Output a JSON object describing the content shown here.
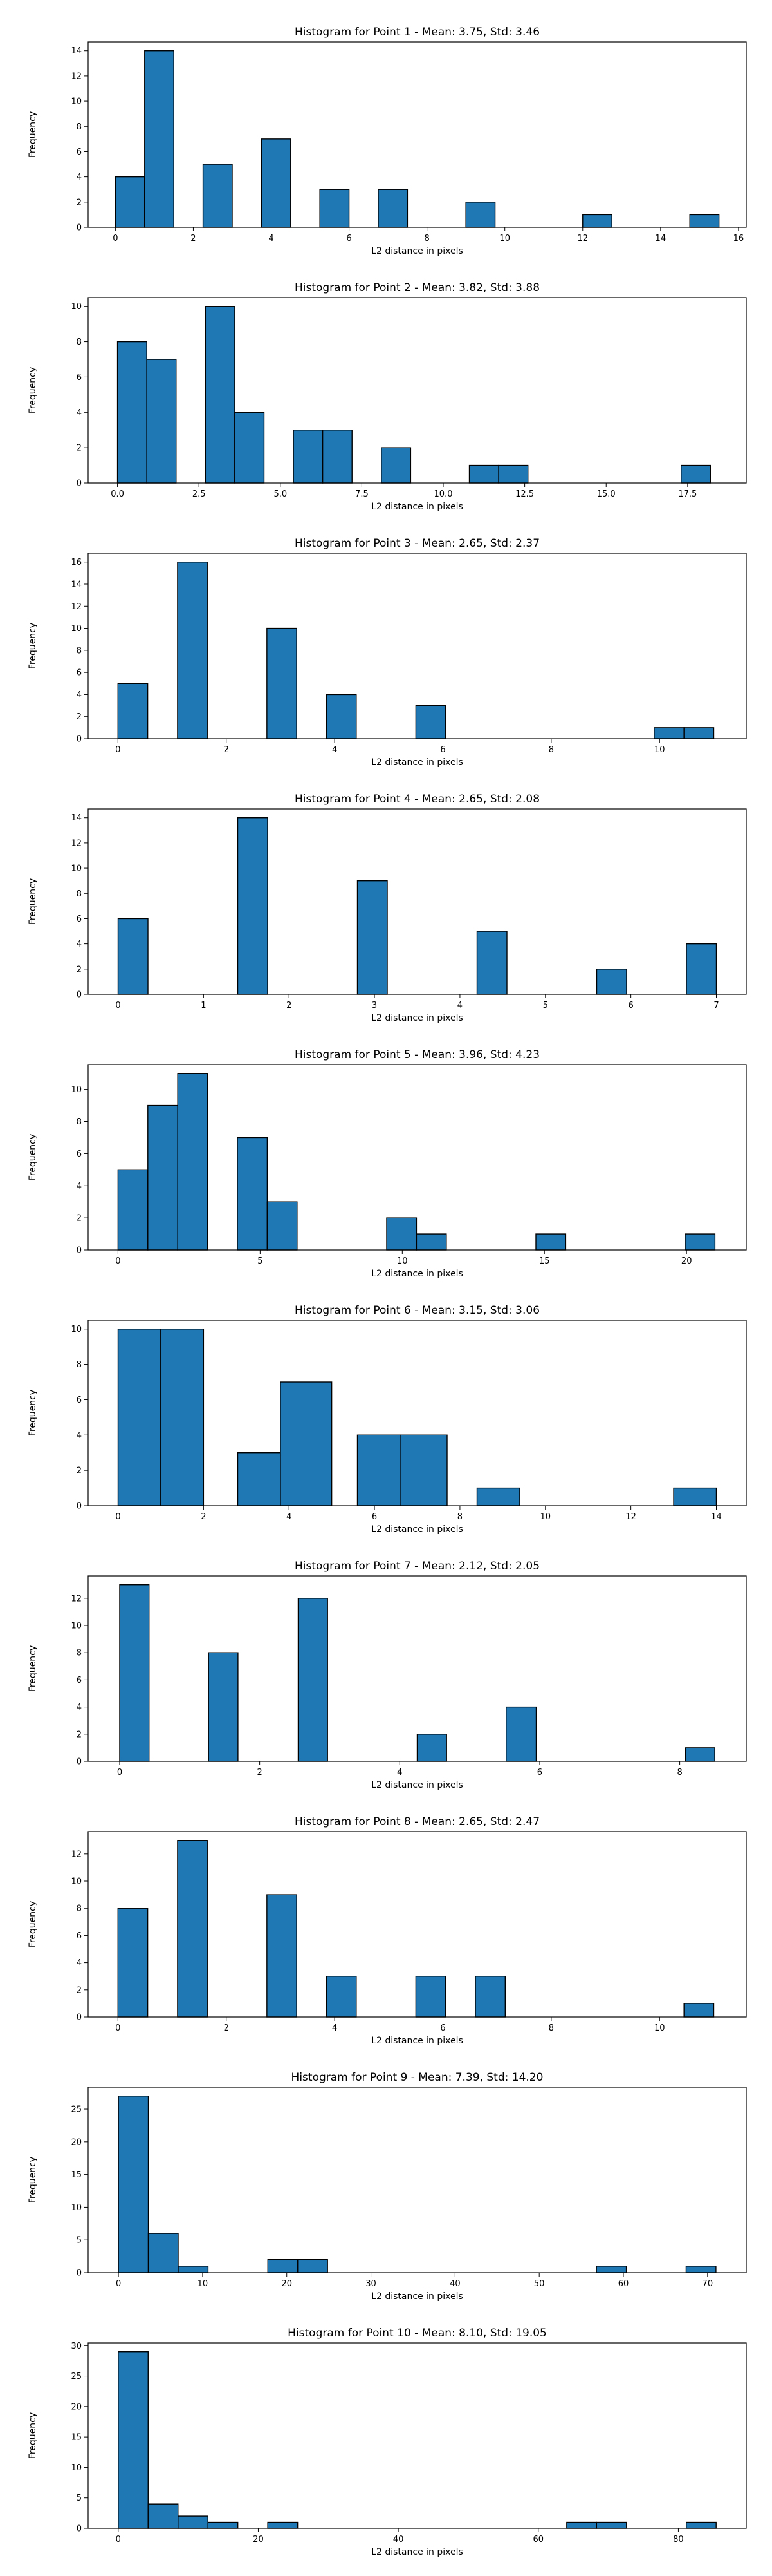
{
  "figure": {
    "bar_color": "#1f77b4",
    "edge_color": "#000000",
    "background": "#ffffff"
  },
  "chart_data": [
    {
      "type": "bar",
      "title": "Histogram for Point 1 - Mean: 3.75, Std: 3.46",
      "xlabel": "L2 distance in pixels",
      "ylabel": "Frequency",
      "xlim": [
        -0.7,
        16.2
      ],
      "ylim": [
        0,
        14.7
      ],
      "xticks": [
        0,
        2,
        4,
        6,
        8,
        10,
        12,
        14,
        16
      ],
      "xtick_labels": [
        "0",
        "2",
        "4",
        "6",
        "8",
        "10",
        "12",
        "14",
        "16"
      ],
      "yticks": [
        0,
        2,
        4,
        6,
        8,
        10,
        12,
        14
      ],
      "bins": [
        {
          "x0": 0.0,
          "x1": 0.75,
          "count": 4
        },
        {
          "x0": 0.75,
          "x1": 1.5,
          "count": 14
        },
        {
          "x0": 2.25,
          "x1": 3.0,
          "count": 5
        },
        {
          "x0": 3.75,
          "x1": 4.5,
          "count": 7
        },
        {
          "x0": 5.25,
          "x1": 6.0,
          "count": 3
        },
        {
          "x0": 6.75,
          "x1": 7.5,
          "count": 3
        },
        {
          "x0": 9.0,
          "x1": 9.75,
          "count": 2
        },
        {
          "x0": 12.0,
          "x1": 12.75,
          "count": 1
        },
        {
          "x0": 14.75,
          "x1": 15.5,
          "count": 1
        }
      ]
    },
    {
      "type": "bar",
      "title": "Histogram for Point 2 - Mean: 3.82, Std: 3.88",
      "xlabel": "L2 distance in pixels",
      "ylabel": "Frequency",
      "xlim": [
        -0.9,
        19.3
      ],
      "ylim": [
        0,
        10.5
      ],
      "xticks": [
        0,
        2.5,
        5,
        7.5,
        10,
        12.5,
        15,
        17.5
      ],
      "xtick_labels": [
        "0.0",
        "2.5",
        "5.0",
        "7.5",
        "10.0",
        "12.5",
        "15.0",
        "17.5"
      ],
      "yticks": [
        0,
        2,
        4,
        6,
        8,
        10
      ],
      "bins": [
        {
          "x0": 0.0,
          "x1": 0.9,
          "count": 8
        },
        {
          "x0": 0.9,
          "x1": 1.8,
          "count": 7
        },
        {
          "x0": 2.7,
          "x1": 3.6,
          "count": 10
        },
        {
          "x0": 3.6,
          "x1": 4.5,
          "count": 4
        },
        {
          "x0": 5.4,
          "x1": 6.3,
          "count": 3
        },
        {
          "x0": 6.3,
          "x1": 7.2,
          "count": 3
        },
        {
          "x0": 8.1,
          "x1": 9.0,
          "count": 2
        },
        {
          "x0": 10.8,
          "x1": 11.7,
          "count": 1
        },
        {
          "x0": 11.7,
          "x1": 12.6,
          "count": 1
        },
        {
          "x0": 17.3,
          "x1": 18.2,
          "count": 1
        }
      ]
    },
    {
      "type": "bar",
      "title": "Histogram for Point 3 - Mean: 2.65, Std: 2.37",
      "xlabel": "L2 distance in pixels",
      "ylabel": "Frequency",
      "xlim": [
        -0.55,
        11.6
      ],
      "ylim": [
        0,
        16.8
      ],
      "xticks": [
        2,
        4,
        6,
        8,
        10
      ],
      "xtick_labels": [
        "2",
        "4",
        "6",
        "8",
        "10"
      ],
      "xtick_zero_label": "0",
      "yticks": [
        0,
        2,
        4,
        6,
        8,
        10,
        12,
        14,
        16
      ],
      "bins": [
        {
          "x0": 0.0,
          "x1": 0.55,
          "count": 5
        },
        {
          "x0": 1.1,
          "x1": 1.65,
          "count": 16
        },
        {
          "x0": 2.75,
          "x1": 3.3,
          "count": 10
        },
        {
          "x0": 3.85,
          "x1": 4.4,
          "count": 4
        },
        {
          "x0": 5.5,
          "x1": 6.05,
          "count": 3
        },
        {
          "x0": 9.9,
          "x1": 10.45,
          "count": 1
        },
        {
          "x0": 10.45,
          "x1": 11.0,
          "count": 1
        }
      ]
    },
    {
      "type": "bar",
      "title": "Histogram for Point 4 - Mean: 2.65, Std: 2.08",
      "xlabel": "L2 distance in pixels",
      "ylabel": "Frequency",
      "xlim": [
        -0.35,
        7.35
      ],
      "ylim": [
        0,
        14.7
      ],
      "xticks": [
        0,
        1,
        2,
        3,
        4,
        5,
        6,
        7
      ],
      "xtick_labels": [
        "0",
        "1",
        "2",
        "3",
        "4",
        "5",
        "6",
        "7"
      ],
      "yticks": [
        0,
        2,
        4,
        6,
        8,
        10,
        12,
        14
      ],
      "bins": [
        {
          "x0": 0.0,
          "x1": 0.35,
          "count": 6
        },
        {
          "x0": 1.4,
          "x1": 1.75,
          "count": 14
        },
        {
          "x0": 2.8,
          "x1": 3.15,
          "count": 9
        },
        {
          "x0": 4.2,
          "x1": 4.55,
          "count": 5
        },
        {
          "x0": 5.6,
          "x1": 5.95,
          "count": 2
        },
        {
          "x0": 6.65,
          "x1": 7.0,
          "count": 4
        }
      ]
    },
    {
      "type": "bar",
      "title": "Histogram for Point 5 - Mean: 3.96, Std: 4.23",
      "xlabel": "L2 distance in pixels",
      "ylabel": "Frequency",
      "xlim": [
        -1.05,
        22.1
      ],
      "ylim": [
        0,
        11.55
      ],
      "xticks": [
        0,
        5,
        10,
        15,
        20
      ],
      "xtick_labels": [
        "0",
        "5",
        "10",
        "15",
        "20"
      ],
      "yticks": [
        0,
        2,
        4,
        6,
        8,
        10
      ],
      "bins": [
        {
          "x0": 0.0,
          "x1": 1.05,
          "count": 5
        },
        {
          "x0": 1.05,
          "x1": 2.1,
          "count": 9
        },
        {
          "x0": 2.1,
          "x1": 3.15,
          "count": 11
        },
        {
          "x0": 4.2,
          "x1": 5.25,
          "count": 7
        },
        {
          "x0": 5.25,
          "x1": 6.3,
          "count": 3
        },
        {
          "x0": 9.45,
          "x1": 10.5,
          "count": 2
        },
        {
          "x0": 10.5,
          "x1": 11.55,
          "count": 1
        },
        {
          "x0": 14.7,
          "x1": 15.75,
          "count": 1
        },
        {
          "x0": 19.95,
          "x1": 21.0,
          "count": 1
        }
      ]
    },
    {
      "type": "bar",
      "title": "Histogram for Point 6 - Mean: 3.15, Std: 3.06",
      "xlabel": "L2 distance in pixels",
      "ylabel": "Frequency",
      "xlim": [
        -0.7,
        14.7
      ],
      "ylim": [
        0,
        10.5
      ],
      "xticks": [
        0,
        2,
        4,
        6,
        8,
        10,
        12,
        14
      ],
      "xtick_labels": [
        "0",
        "2",
        "4",
        "6",
        "8",
        "10",
        "12",
        "14"
      ],
      "yticks": [
        0,
        2,
        4,
        6,
        8,
        10
      ],
      "bins": [
        {
          "x0": 0.0,
          "x1": 1.0,
          "count": 10
        },
        {
          "x0": 1.0,
          "x1": 2.0,
          "count": 10
        },
        {
          "x0": 2.8,
          "x1": 3.8,
          "count": 3
        },
        {
          "x0": 3.8,
          "x1": 5.0,
          "count": 7
        },
        {
          "x0": 5.6,
          "x1": 6.6,
          "count": 4
        },
        {
          "x0": 6.6,
          "x1": 7.7,
          "count": 4
        },
        {
          "x0": 8.4,
          "x1": 9.4,
          "count": 1
        },
        {
          "x0": 13.0,
          "x1": 14.0,
          "count": 1
        }
      ]
    },
    {
      "type": "bar",
      "title": "Histogram for Point 7 - Mean: 2.12, Std: 2.05",
      "xlabel": "L2 distance in pixels",
      "ylabel": "Frequency",
      "xlim": [
        -0.45,
        8.95
      ],
      "ylim": [
        0,
        13.65
      ],
      "xticks": [
        2,
        4,
        6,
        8
      ],
      "xtick_labels": [
        "2",
        "4",
        "6",
        "8"
      ],
      "xtick_zero_label": "0",
      "yticks": [
        0,
        2,
        4,
        6,
        8,
        10,
        12
      ],
      "bins": [
        {
          "x0": 0.0,
          "x1": 0.42,
          "count": 13
        },
        {
          "x0": 1.27,
          "x1": 1.69,
          "count": 8
        },
        {
          "x0": 2.55,
          "x1": 2.97,
          "count": 12
        },
        {
          "x0": 4.25,
          "x1": 4.67,
          "count": 2
        },
        {
          "x0": 5.52,
          "x1": 5.95,
          "count": 4
        },
        {
          "x0": 8.08,
          "x1": 8.5,
          "count": 1
        }
      ]
    },
    {
      "type": "bar",
      "title": "Histogram for Point 8 - Mean: 2.65, Std: 2.47",
      "xlabel": "L2 distance in pixels",
      "ylabel": "Frequency",
      "xlim": [
        -0.55,
        11.6
      ],
      "ylim": [
        0,
        13.65
      ],
      "xticks": [
        2,
        4,
        6,
        8,
        10
      ],
      "xtick_labels": [
        "2",
        "4",
        "6",
        "8",
        "10"
      ],
      "xtick_zero_label": "0",
      "yticks": [
        0,
        2,
        4,
        6,
        8,
        10,
        12
      ],
      "bins": [
        {
          "x0": 0.0,
          "x1": 0.55,
          "count": 8
        },
        {
          "x0": 1.1,
          "x1": 1.65,
          "count": 13
        },
        {
          "x0": 2.75,
          "x1": 3.3,
          "count": 9
        },
        {
          "x0": 3.85,
          "x1": 4.4,
          "count": 3
        },
        {
          "x0": 5.5,
          "x1": 6.05,
          "count": 3
        },
        {
          "x0": 6.6,
          "x1": 7.15,
          "count": 3
        },
        {
          "x0": 10.45,
          "x1": 11.0,
          "count": 1
        }
      ]
    },
    {
      "type": "bar",
      "title": "Histogram for Point 9 - Mean: 7.39, Std: 14.20",
      "xlabel": "L2 distance in pixels",
      "ylabel": "Frequency",
      "xlim": [
        -3.6,
        74.6
      ],
      "ylim": [
        0,
        28.35
      ],
      "xticks": [
        0,
        10,
        20,
        30,
        40,
        50,
        60,
        70
      ],
      "xtick_labels": [
        "0",
        "10",
        "20",
        "30",
        "40",
        "50",
        "60",
        "70"
      ],
      "yticks": [
        0,
        5,
        10,
        15,
        20,
        25
      ],
      "bins": [
        {
          "x0": 0.0,
          "x1": 3.55,
          "count": 27
        },
        {
          "x0": 3.55,
          "x1": 7.1,
          "count": 6
        },
        {
          "x0": 7.1,
          "x1": 10.65,
          "count": 1
        },
        {
          "x0": 17.75,
          "x1": 21.3,
          "count": 2
        },
        {
          "x0": 21.3,
          "x1": 24.85,
          "count": 2
        },
        {
          "x0": 56.8,
          "x1": 60.35,
          "count": 1
        },
        {
          "x0": 67.45,
          "x1": 71.0,
          "count": 1
        }
      ]
    },
    {
      "type": "bar",
      "title": "Histogram for Point 10 - Mean: 8.10, Std: 19.05",
      "xlabel": "L2 distance in pixels",
      "ylabel": "Frequency",
      "xlim": [
        -4.3,
        89.7
      ],
      "ylim": [
        0,
        30.45
      ],
      "xticks": [
        0,
        20,
        40,
        60,
        80
      ],
      "xtick_labels": [
        "0",
        "20",
        "40",
        "60",
        "80"
      ],
      "yticks": [
        0,
        5,
        10,
        15,
        20,
        25,
        30
      ],
      "bins": [
        {
          "x0": 0.0,
          "x1": 4.27,
          "count": 29
        },
        {
          "x0": 4.27,
          "x1": 8.54,
          "count": 4
        },
        {
          "x0": 8.54,
          "x1": 12.81,
          "count": 2
        },
        {
          "x0": 12.81,
          "x1": 17.08,
          "count": 1
        },
        {
          "x0": 21.35,
          "x1": 25.62,
          "count": 1
        },
        {
          "x0": 64.05,
          "x1": 68.32,
          "count": 1
        },
        {
          "x0": 68.32,
          "x1": 72.59,
          "count": 1
        },
        {
          "x0": 81.13,
          "x1": 85.4,
          "count": 1
        }
      ]
    }
  ]
}
